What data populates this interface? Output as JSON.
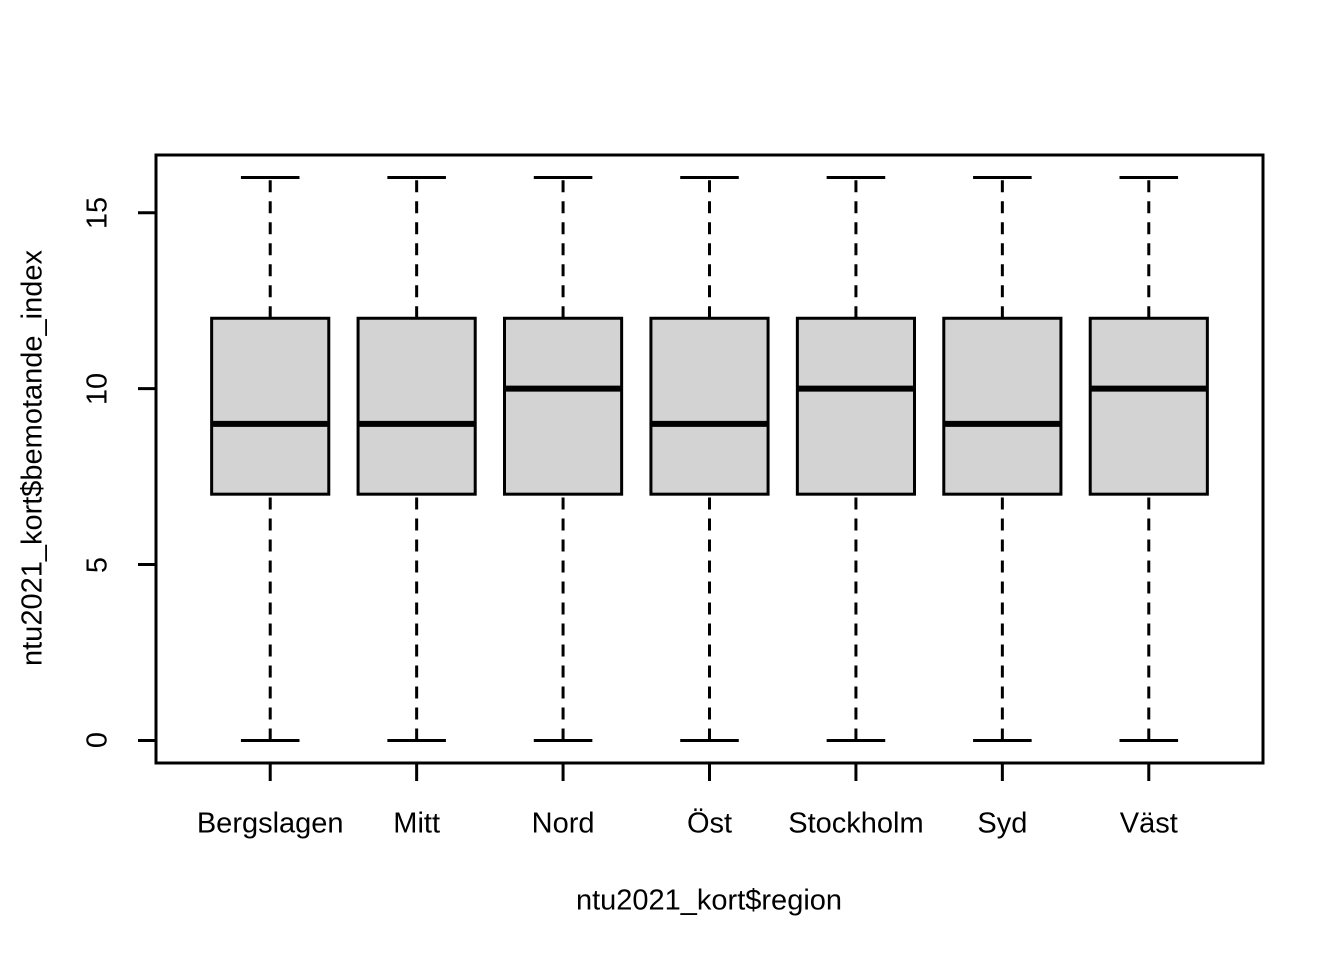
{
  "chart_data": {
    "type": "boxplot",
    "title": "",
    "xlabel": "ntu2021_kort$region",
    "ylabel": "ntu2021_kort$bemotande_index",
    "categories": [
      "Bergslagen",
      "Mitt",
      "Nord",
      "Öst",
      "Stockholm",
      "Syd",
      "Väst"
    ],
    "series": [
      {
        "name": "Bergslagen",
        "whisker_low": 0,
        "q1": 7,
        "median": 9,
        "q3": 12,
        "whisker_high": 16
      },
      {
        "name": "Mitt",
        "whisker_low": 0,
        "q1": 7,
        "median": 9,
        "q3": 12,
        "whisker_high": 16
      },
      {
        "name": "Nord",
        "whisker_low": 0,
        "q1": 7,
        "median": 10,
        "q3": 12,
        "whisker_high": 16
      },
      {
        "name": "Öst",
        "whisker_low": 0,
        "q1": 7,
        "median": 9,
        "q3": 12,
        "whisker_high": 16
      },
      {
        "name": "Stockholm",
        "whisker_low": 0,
        "q1": 7,
        "median": 10,
        "q3": 12,
        "whisker_high": 16
      },
      {
        "name": "Syd",
        "whisker_low": 0,
        "q1": 7,
        "median": 9,
        "q3": 12,
        "whisker_high": 16
      },
      {
        "name": "Väst",
        "whisker_low": 0,
        "q1": 7,
        "median": 10,
        "q3": 12,
        "whisker_high": 16
      }
    ],
    "yticks": [
      "0",
      "5",
      "10",
      "15"
    ],
    "ylim": [
      0,
      16
    ],
    "x_range": [
      0.5,
      7.5
    ],
    "grid": false,
    "styles": {
      "box_fill": "#d3d3d3",
      "stroke": "#000000",
      "background": "#ffffff"
    }
  }
}
